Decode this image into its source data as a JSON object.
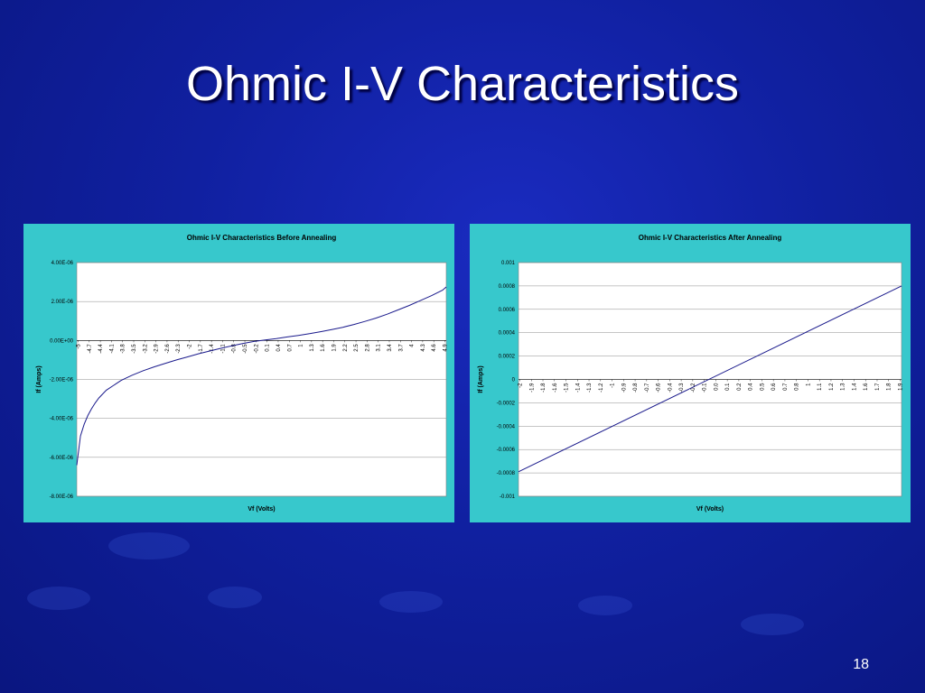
{
  "slide": {
    "title": "Ohmic I-V Characteristics",
    "number": "18"
  },
  "colors": {
    "background": "#1020a0",
    "panel": "#37c8cc",
    "plot_area": "#ffffff",
    "line": "#1a1a8c",
    "title_text": "#ffffff"
  },
  "chart_data": [
    {
      "id": "before",
      "type": "line",
      "title": "Ohmic I-V Characteristics Before Annealing",
      "xlabel": "Vf (Volts)",
      "ylabel": "If (Amps)",
      "ylim": [
        -8e-06,
        4e-06
      ],
      "y_ticks": [
        4e-06,
        2e-06,
        0,
        -2e-06,
        -4e-06,
        -6e-06,
        -8e-06
      ],
      "y_tick_labels": [
        "4.00E-06",
        "2.00E-06",
        "0.00E+00",
        "-2.00E-06",
        "-4.00E-06",
        "-6.00E-06",
        "-8.00E-06"
      ],
      "x_tick_labels": [
        "-5",
        "-4.7",
        "-4.4",
        "-4.1",
        "-3.8",
        "-3.5",
        "-3.2",
        "-2.9",
        "-2.6",
        "-2.3",
        "-2",
        "-1.7",
        "-1.4",
        "-1.1",
        "-0.8",
        "-0.5",
        "-0.2",
        "0.1",
        "0.4",
        "0.7",
        "1",
        "1.3",
        "1.6",
        "1.9",
        "2.2",
        "2.5",
        "2.8",
        "3.1",
        "3.4",
        "3.7",
        "4",
        "4.3",
        "4.6",
        "4.9"
      ],
      "grid": true,
      "series": [
        {
          "x": [
            -5,
            -4.9,
            -4.8,
            -4.7,
            -4.6,
            -4.5,
            -4.4,
            -4.2,
            -4.0,
            -3.8,
            -3.5,
            -3.2,
            -2.9,
            -2.6,
            -2.3,
            -2.0,
            -1.7,
            -1.4,
            -1.1,
            -0.8,
            -0.5,
            -0.2,
            0.1,
            0.4,
            0.7,
            1.0,
            1.3,
            1.6,
            1.9,
            2.2,
            2.5,
            2.8,
            3.1,
            3.4,
            3.7,
            4.0,
            4.3,
            4.6,
            4.9,
            5.0
          ],
          "y": [
            -6.4e-06,
            -4.9e-06,
            -4.3e-06,
            -3.85e-06,
            -3.5e-06,
            -3.2e-06,
            -2.95e-06,
            -2.55e-06,
            -2.3e-06,
            -2.05e-06,
            -1.78e-06,
            -1.55e-06,
            -1.35e-06,
            -1.17e-06,
            -1e-06,
            -8.4e-07,
            -6.8e-07,
            -5.4e-07,
            -4e-07,
            -2.7e-07,
            -1.5e-07,
            -5e-08,
            3e-08,
            1e-07,
            1.8e-07,
            2.6e-07,
            3.5e-07,
            4.5e-07,
            5.6e-07,
            6.8e-07,
            8.2e-07,
            9.8e-07,
            1.15e-06,
            1.35e-06,
            1.57e-06,
            1.8e-06,
            2.05e-06,
            2.3e-06,
            2.58e-06,
            2.75e-06
          ]
        }
      ]
    },
    {
      "id": "after",
      "type": "line",
      "title": "Ohmic I-V Characteristics After Annealing",
      "xlabel": "Vf (Volts)",
      "ylabel": "If (Amps)",
      "ylim": [
        -0.001,
        0.001
      ],
      "y_ticks": [
        0.001,
        0.0008,
        0.0006,
        0.0004,
        0.0002,
        0,
        -0.0002,
        -0.0004,
        -0.0006,
        -0.0008,
        -0.001
      ],
      "y_tick_labels": [
        "0.001",
        "0.0008",
        "0.0006",
        "0.0004",
        "0.0002",
        "0",
        "-0.0002",
        "-0.0004",
        "-0.0006",
        "-0.0008",
        "-0.001"
      ],
      "x_tick_labels": [
        "-2",
        "-1.9",
        "-1.8",
        "-1.6",
        "-1.5",
        "-1.4",
        "-1.3",
        "-1.2",
        "-1",
        "-0.9",
        "-0.8",
        "-0.7",
        "-0.6",
        "-0.4",
        "-0.3",
        "-0.2",
        "-0.1",
        "0.0",
        "0.1",
        "0.2",
        "0.4",
        "0.5",
        "0.6",
        "0.7",
        "0.8",
        "1",
        "1.1",
        "1.2",
        "1.3",
        "1.4",
        "1.6",
        "1.7",
        "1.8",
        "1.9"
      ],
      "grid": true,
      "series": [
        {
          "x": [
            -2.0,
            2.0
          ],
          "y": [
            -0.00079,
            0.0008
          ]
        }
      ]
    }
  ]
}
